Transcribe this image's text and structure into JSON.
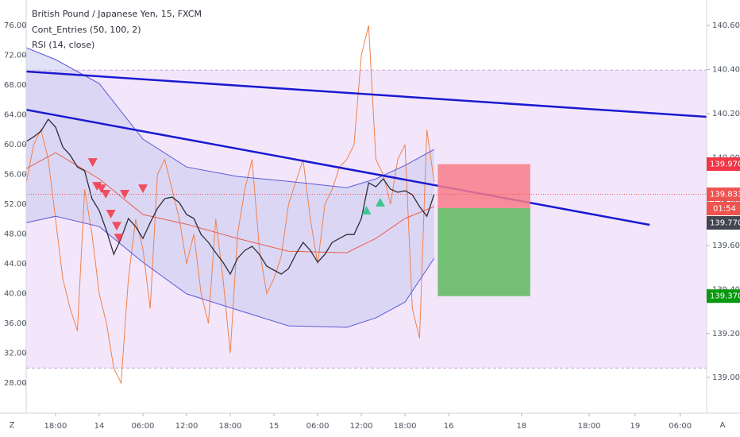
{
  "chart_data": {
    "type": "line",
    "title": "British Pound / Japanese Yen, 15, FXCM",
    "indicators": [
      "Cont_Entries (50, 100, 2)",
      "RSI (14, close)"
    ],
    "xlim": [
      -4.03,
      89.43
    ],
    "xticks": [
      {
        "value": 0,
        "label": "18:00"
      },
      {
        "value": 6,
        "label": "14"
      },
      {
        "value": 12,
        "label": "06:00"
      },
      {
        "value": 18,
        "label": "12:00"
      },
      {
        "value": 24,
        "label": "18:00"
      },
      {
        "value": 30,
        "label": "15"
      },
      {
        "value": 36,
        "label": "06:00"
      },
      {
        "value": 42,
        "label": "12:00"
      },
      {
        "value": 48,
        "label": "18:00"
      },
      {
        "value": 54,
        "label": "16"
      },
      {
        "value": 64,
        "label": "18"
      },
      {
        "value": 73.3,
        "label": "18:00"
      },
      {
        "value": 79.6,
        "label": "19"
      },
      {
        "value": 85.8,
        "label": "06:00"
      }
    ],
    "ylim": [
      23.95,
      79.41
    ],
    "yticks": [
      {
        "value": 28,
        "label": "28.00"
      },
      {
        "value": 32,
        "label": "32.00"
      },
      {
        "value": 36,
        "label": "36.00"
      },
      {
        "value": 40,
        "label": "40.00"
      },
      {
        "value": 44,
        "label": "44.00"
      },
      {
        "value": 48,
        "label": "48.00"
      },
      {
        "value": 52,
        "label": "52.00"
      },
      {
        "value": 56,
        "label": "56.00"
      },
      {
        "value": 60,
        "label": "60.00"
      },
      {
        "value": 64,
        "label": "64.00"
      },
      {
        "value": 68,
        "label": "68.00"
      },
      {
        "value": 72,
        "label": "72.00"
      },
      {
        "value": 76,
        "label": "76.00"
      }
    ],
    "y2lim": [
      138.838,
      140.716
    ],
    "y2ticks": [
      {
        "value": 139.0,
        "label": "139.000"
      },
      {
        "value": 139.2,
        "label": "139.200"
      },
      {
        "value": 139.4,
        "label": "139.400"
      },
      {
        "value": 139.6,
        "label": "139.600"
      },
      {
        "value": 139.8,
        "label": "139.800"
      },
      {
        "value": 140.0,
        "label": "140.000"
      },
      {
        "value": 140.2,
        "label": "140.200"
      },
      {
        "value": 140.4,
        "label": "140.400"
      },
      {
        "value": 140.6,
        "label": "140.600"
      }
    ],
    "corner_labels": [
      "Z",
      "A"
    ],
    "rsi_levels": [
      30,
      70
    ],
    "series": [
      {
        "color": "#2a2e39",
        "axis": "y2",
        "x": [
          -4,
          -3,
          -2,
          -1,
          0,
          1,
          2,
          3,
          4,
          5,
          6,
          7,
          8,
          9,
          10,
          11,
          12,
          13,
          14,
          15,
          16,
          17,
          18,
          19,
          20,
          21,
          22,
          23,
          24,
          25,
          26,
          27,
          28,
          29,
          30,
          31,
          32,
          33,
          34,
          35,
          36,
          37,
          38,
          39,
          40,
          41,
          42,
          43,
          44,
          45,
          46,
          47,
          48,
          49,
          50,
          51,
          52
        ],
        "values": [
          140.073,
          140.094,
          140.12,
          140.174,
          140.138,
          140.048,
          140.011,
          139.957,
          139.939,
          139.813,
          139.759,
          139.668,
          139.56,
          139.632,
          139.723,
          139.686,
          139.632,
          139.704,
          139.769,
          139.813,
          139.82,
          139.795,
          139.741,
          139.723,
          139.65,
          139.614,
          139.567,
          139.524,
          139.47,
          139.542,
          139.578,
          139.596,
          139.56,
          139.506,
          139.488,
          139.47,
          139.495,
          139.56,
          139.614,
          139.578,
          139.524,
          139.56,
          139.614,
          139.632,
          139.65,
          139.65,
          139.723,
          139.885,
          139.867,
          139.903,
          139.856,
          139.842,
          139.849,
          139.831,
          139.777,
          139.733,
          139.833
        ]
      },
      {
        "color": "#f0824a",
        "axis": "y",
        "x": [
          -4,
          -3,
          -2,
          -1,
          0,
          1,
          2,
          3,
          4,
          5,
          6,
          7,
          8,
          9,
          10,
          11,
          12,
          13,
          14,
          15,
          16,
          17,
          18,
          19,
          20,
          21,
          22,
          23,
          24,
          25,
          26,
          27,
          28,
          29,
          30,
          31,
          32,
          33,
          34,
          35,
          36,
          37,
          38,
          39,
          40,
          41,
          42,
          43,
          44,
          45,
          46,
          47,
          48,
          49,
          50,
          51,
          52
        ],
        "values": [
          55,
          60,
          62,
          58,
          50,
          42,
          38,
          35,
          54,
          48,
          40,
          36,
          30,
          28,
          42,
          50,
          46,
          38,
          56,
          58,
          54,
          50,
          44,
          48,
          40,
          36,
          50,
          42,
          32,
          48,
          54,
          58,
          46,
          40,
          42,
          45,
          52,
          55,
          58,
          50,
          44,
          52,
          54,
          57,
          58,
          60,
          72,
          76,
          58,
          56,
          52,
          58,
          60,
          38,
          34,
          62,
          55
        ]
      },
      {
        "color": "#5b5bd6",
        "axis": "y2",
        "x": [
          -4,
          0,
          6,
          12,
          18,
          25,
          32,
          40,
          44,
          48,
          52
        ],
        "values": [
          140.499,
          140.445,
          140.336,
          140.084,
          139.957,
          139.914,
          139.892,
          139.863,
          139.903,
          139.964,
          140.037
        ]
      },
      {
        "color": "#e8604c",
        "axis": "y2",
        "x": [
          -4,
          0,
          6,
          12,
          18,
          25,
          32,
          40,
          44,
          48,
          52
        ],
        "values": [
          139.95,
          140.022,
          139.903,
          139.741,
          139.697,
          139.632,
          139.574,
          139.567,
          139.632,
          139.723,
          139.777
        ]
      },
      {
        "color": "#5b5bd6",
        "axis": "y2",
        "x": [
          -4,
          0,
          6,
          12,
          18,
          25,
          32,
          40,
          44,
          48,
          52
        ],
        "values": [
          139.704,
          139.733,
          139.686,
          139.524,
          139.38,
          139.307,
          139.235,
          139.228,
          139.271,
          139.343,
          139.542
        ]
      }
    ],
    "trend_lines": [
      {
        "color": "#1a1acf",
        "x": [
          -4,
          89.4
        ],
        "values": [
          140.391,
          140.185
        ]
      },
      {
        "color": "#1a1acf",
        "x": [
          -4,
          81.6
        ],
        "values": [
          140.217,
          139.694
        ]
      }
    ],
    "sell_signals": {
      "color": "#f23645",
      "x": [
        5.1,
        5.7,
        6.3,
        6.9,
        7.6,
        8.4,
        9.5,
        12.0,
        8.7
      ],
      "values": [
        139.975,
        139.867,
        139.856,
        139.831,
        139.741,
        139.686,
        139.831,
        139.856,
        139.632
      ]
    },
    "buy_signals": {
      "color": "#26c281",
      "x": [
        42.7,
        44.6
      ],
      "values": [
        139.759,
        139.795
      ]
    },
    "position": {
      "x": [
        52.5,
        65.2
      ],
      "stop": 139.97,
      "entry": 139.77,
      "target": 139.37
    },
    "price_labels": [
      {
        "value": 139.97,
        "label": "139.970",
        "color": "#f23645"
      },
      {
        "value": 139.833,
        "label": "139.833",
        "color": "#ef5350"
      },
      {
        "value": 139.77,
        "label": "139.770",
        "color": "#434651"
      },
      {
        "value": 139.37,
        "label": "139.370",
        "color": "#089a0e"
      }
    ],
    "countdown": "01:54"
  }
}
